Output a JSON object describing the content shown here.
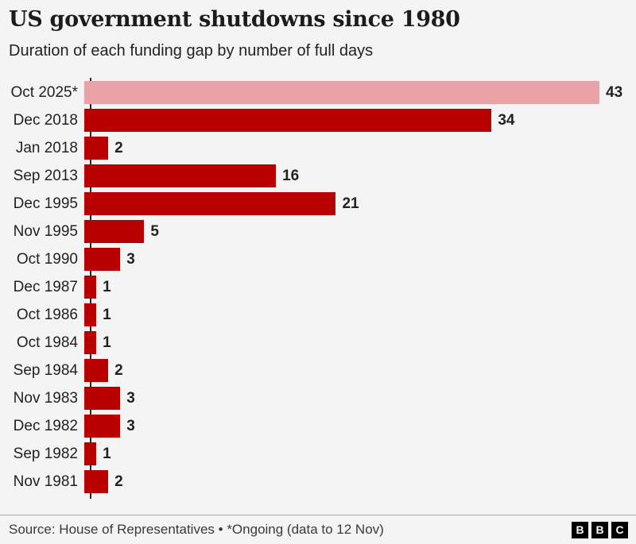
{
  "header": {
    "title": "US government shutdowns since 1980",
    "subtitle": "Duration of each funding gap by number of full days"
  },
  "chart_data": {
    "type": "bar",
    "orientation": "horizontal",
    "title": "US government shutdowns since 1980",
    "subtitle": "Duration of each funding gap by number of full days",
    "xlabel": "",
    "ylabel": "",
    "xlim": [
      0,
      43
    ],
    "grid": false,
    "legend": false,
    "categories": [
      "Oct 2025*",
      "Dec 2018",
      "Jan 2018",
      "Sep 2013",
      "Dec 1995",
      "Nov 1995",
      "Oct 1990",
      "Dec 1987",
      "Oct 1986",
      "Oct 1984",
      "Sep 1984",
      "Nov 1983",
      "Dec 1982",
      "Sep 1982",
      "Nov 1981"
    ],
    "values": [
      43,
      34,
      2,
      16,
      21,
      5,
      3,
      1,
      1,
      1,
      2,
      3,
      3,
      1,
      2
    ],
    "highlight_index": 0,
    "highlight_note": "Ongoing shutdown shown in light pink",
    "colors": {
      "bar": "#b80000",
      "highlight_bar": "#e9a2a7",
      "axis": "#262626",
      "value_label": "#222222",
      "background": "#f4f4f4"
    }
  },
  "footer": {
    "source": "Source: House of Representatives • *Ongoing (data to 12 Nov)",
    "logo_letters": [
      "B",
      "B",
      "C"
    ]
  }
}
